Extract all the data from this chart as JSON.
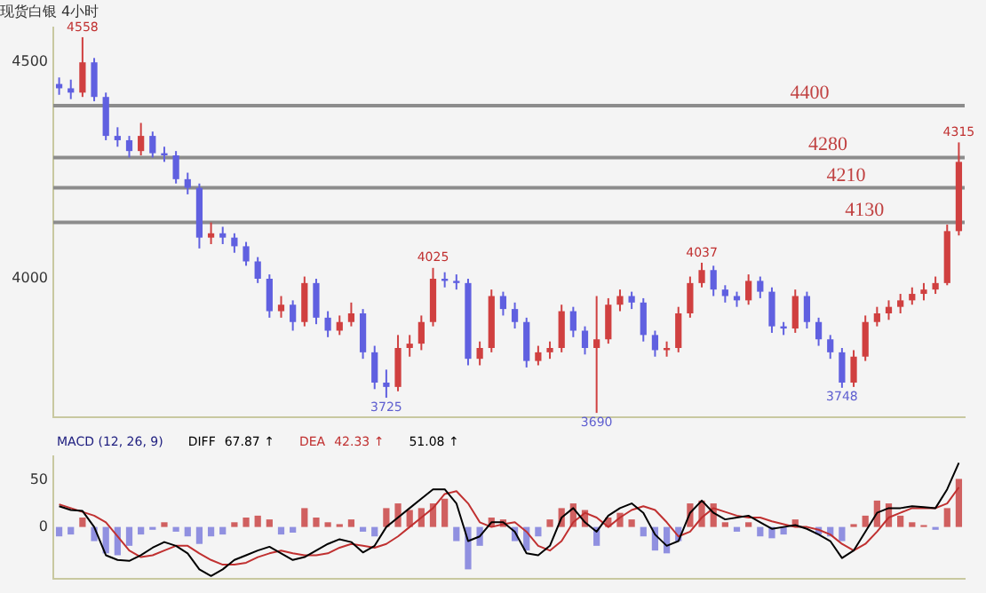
{
  "chart_data": [
    {
      "type": "candlestick",
      "title": "现货白银 4小时",
      "categories": [
        null,
        null,
        null,
        null,
        null,
        null,
        null,
        null,
        null,
        null,
        null,
        null,
        null,
        null,
        null,
        null,
        null,
        null,
        null,
        null,
        null,
        null,
        null,
        null,
        null,
        null,
        null,
        null,
        null,
        null,
        null,
        null,
        null,
        null,
        null,
        null,
        null,
        null,
        null,
        null,
        null,
        null,
        null,
        null,
        null,
        null,
        null,
        null,
        null,
        null,
        null,
        null,
        null,
        null,
        null,
        null,
        null,
        null,
        null,
        null,
        null,
        null,
        null,
        null,
        null,
        null,
        null,
        null,
        null,
        null,
        null,
        null,
        null,
        null,
        null,
        null,
        null,
        null
      ],
      "ohlc": [
        [
          4450,
          4465,
          4425,
          4440
        ],
        [
          4440,
          4460,
          4415,
          4430
        ],
        [
          4430,
          4558,
          4420,
          4500
        ],
        [
          4500,
          4510,
          4410,
          4420
        ],
        [
          4420,
          4430,
          4320,
          4330
        ],
        [
          4330,
          4350,
          4305,
          4320
        ],
        [
          4320,
          4330,
          4280,
          4295
        ],
        [
          4295,
          4360,
          4285,
          4330
        ],
        [
          4330,
          4340,
          4280,
          4290
        ],
        [
          4290,
          4305,
          4270,
          4285
        ],
        [
          4285,
          4295,
          4220,
          4230
        ],
        [
          4230,
          4245,
          4195,
          4210
        ],
        [
          4210,
          4220,
          4070,
          4095
        ],
        [
          4095,
          4130,
          4080,
          4105
        ],
        [
          4105,
          4120,
          4080,
          4095
        ],
        [
          4095,
          4105,
          4060,
          4075
        ],
        [
          4075,
          4085,
          4030,
          4040
        ],
        [
          4040,
          4050,
          3990,
          4000
        ],
        [
          4000,
          4010,
          3910,
          3925
        ],
        [
          3925,
          3960,
          3910,
          3940
        ],
        [
          3940,
          3950,
          3880,
          3900
        ],
        [
          3900,
          4005,
          3890,
          3990
        ],
        [
          3990,
          4000,
          3895,
          3910
        ],
        [
          3910,
          3925,
          3865,
          3880
        ],
        [
          3880,
          3915,
          3870,
          3900
        ],
        [
          3900,
          3945,
          3890,
          3920
        ],
        [
          3920,
          3930,
          3815,
          3830
        ],
        [
          3830,
          3845,
          3745,
          3760
        ],
        [
          3760,
          3790,
          3725,
          3750
        ],
        [
          3750,
          3870,
          3740,
          3840
        ],
        [
          3840,
          3870,
          3820,
          3850
        ],
        [
          3850,
          3915,
          3835,
          3900
        ],
        [
          3900,
          4025,
          3890,
          4000
        ],
        [
          4000,
          4015,
          3980,
          3995
        ],
        [
          3995,
          4010,
          3975,
          3990
        ],
        [
          3990,
          4000,
          3800,
          3815
        ],
        [
          3815,
          3855,
          3800,
          3840
        ],
        [
          3840,
          3975,
          3830,
          3960
        ],
        [
          3960,
          3970,
          3915,
          3930
        ],
        [
          3930,
          3945,
          3885,
          3900
        ],
        [
          3900,
          3910,
          3795,
          3810
        ],
        [
          3810,
          3845,
          3800,
          3830
        ],
        [
          3830,
          3855,
          3815,
          3840
        ],
        [
          3840,
          3940,
          3830,
          3925
        ],
        [
          3925,
          3935,
          3865,
          3880
        ],
        [
          3880,
          3890,
          3825,
          3840
        ],
        [
          3840,
          3960,
          3690,
          3860
        ],
        [
          3860,
          3955,
          3850,
          3940
        ],
        [
          3940,
          3975,
          3925,
          3960
        ],
        [
          3960,
          3970,
          3930,
          3945
        ],
        [
          3945,
          3955,
          3855,
          3870
        ],
        [
          3870,
          3880,
          3820,
          3835
        ],
        [
          3835,
          3855,
          3820,
          3840
        ],
        [
          3840,
          3935,
          3830,
          3920
        ],
        [
          3920,
          4005,
          3910,
          3990
        ],
        [
          3990,
          4037,
          3980,
          4020
        ],
        [
          4020,
          4030,
          3960,
          3975
        ],
        [
          3975,
          3985,
          3945,
          3960
        ],
        [
          3960,
          3970,
          3935,
          3950
        ],
        [
          3950,
          4010,
          3940,
          3995
        ],
        [
          3995,
          4005,
          3955,
          3970
        ],
        [
          3970,
          3980,
          3875,
          3890
        ],
        [
          3890,
          3900,
          3870,
          3885
        ],
        [
          3885,
          3975,
          3875,
          3960
        ],
        [
          3960,
          3970,
          3885,
          3900
        ],
        [
          3900,
          3910,
          3845,
          3860
        ],
        [
          3860,
          3870,
          3815,
          3830
        ],
        [
          3830,
          3840,
          3748,
          3760
        ],
        [
          3760,
          3835,
          3750,
          3820
        ],
        [
          3820,
          3915,
          3810,
          3900
        ],
        [
          3900,
          3935,
          3890,
          3920
        ],
        [
          3920,
          3950,
          3905,
          3935
        ],
        [
          3935,
          3965,
          3920,
          3950
        ],
        [
          3950,
          3980,
          3940,
          3965
        ],
        [
          3965,
          3990,
          3950,
          3975
        ],
        [
          3975,
          4005,
          3965,
          3990
        ],
        [
          3990,
          4125,
          3985,
          4110
        ],
        [
          4110,
          4315,
          4100,
          4270
        ]
      ],
      "colors": [
        "#6060e0",
        "#6060e0",
        "#d04040",
        "#6060e0",
        "#6060e0",
        "#6060e0",
        "#6060e0",
        "#d04040",
        "#6060e0",
        "#6060e0",
        "#6060e0",
        "#6060e0",
        "#6060e0",
        "#d04040",
        "#6060e0",
        "#6060e0",
        "#6060e0",
        "#6060e0",
        "#6060e0",
        "#d04040",
        "#6060e0",
        "#d04040",
        "#6060e0",
        "#6060e0",
        "#d04040",
        "#d04040",
        "#6060e0",
        "#6060e0",
        "#6060e0",
        "#d04040",
        "#d04040",
        "#d04040",
        "#d04040",
        "#6060e0",
        "#6060e0",
        "#6060e0",
        "#d04040",
        "#d04040",
        "#6060e0",
        "#6060e0",
        "#6060e0",
        "#d04040",
        "#d04040",
        "#d04040",
        "#6060e0",
        "#6060e0",
        "#d04040",
        "#d04040",
        "#d04040",
        "#6060e0",
        "#6060e0",
        "#6060e0",
        "#d04040",
        "#d04040",
        "#d04040",
        "#d04040",
        "#6060e0",
        "#6060e0",
        "#6060e0",
        "#d04040",
        "#6060e0",
        "#6060e0",
        "#6060e0",
        "#d04040",
        "#6060e0",
        "#6060e0",
        "#6060e0",
        "#6060e0",
        "#d04040",
        "#d04040",
        "#d04040",
        "#d04040",
        "#d04040",
        "#d04040",
        "#d04040",
        "#d04040",
        "#d04040",
        "#d04040"
      ],
      "ylim": [
        3680,
        4580
      ],
      "yticks": [
        4000,
        4500
      ],
      "tick_labels": "y",
      "ref_lines": [
        {
          "axis": "y",
          "value": 4400,
          "label": "4400",
          "color": "#8c8c8c"
        },
        {
          "axis": "y",
          "value": 4280,
          "label": "4280",
          "color": "#8c8c8c"
        },
        {
          "axis": "y",
          "value": 4210,
          "label": "4210",
          "color": "#8c8c8c"
        },
        {
          "axis": "y",
          "value": 4130,
          "label": "4130",
          "color": "#8c8c8c"
        }
      ],
      "annotations": [
        {
          "text": "4558",
          "y": 4558
        },
        {
          "text": "4025",
          "y": 4025
        },
        {
          "text": "3725",
          "y": 3725
        },
        {
          "text": "3690",
          "y": 3690
        },
        {
          "text": "4037",
          "y": 4037
        },
        {
          "text": "3748",
          "y": 3748
        },
        {
          "text": "4315",
          "y": 4315
        }
      ]
    },
    {
      "type": "bar",
      "categories": [
        null,
        null,
        null,
        null,
        null,
        null,
        null,
        null,
        null,
        null,
        null,
        null,
        null,
        null,
        null,
        null,
        null,
        null,
        null,
        null,
        null,
        null,
        null,
        null,
        null,
        null,
        null,
        null,
        null,
        null,
        null,
        null,
        null,
        null,
        null,
        null,
        null,
        null,
        null,
        null,
        null,
        null,
        null,
        null,
        null,
        null,
        null,
        null,
        null,
        null,
        null,
        null,
        null,
        null,
        null,
        null,
        null,
        null,
        null,
        null,
        null,
        null,
        null,
        null,
        null,
        null,
        null,
        null,
        null,
        null,
        null,
        null,
        null,
        null,
        null,
        null,
        null,
        null
      ],
      "series": [
        {
          "type": "bar",
          "values": [
            -10,
            -8,
            10,
            -15,
            -28,
            -30,
            -20,
            -8,
            -3,
            5,
            -5,
            -10,
            -18,
            -10,
            -8,
            5,
            10,
            12,
            8,
            -8,
            -6,
            20,
            10,
            5,
            3,
            8,
            -5,
            -10,
            20,
            25,
            18,
            20,
            25,
            30,
            -15,
            -45,
            -20,
            10,
            8,
            -15,
            -25,
            -10,
            8,
            20,
            25,
            18,
            -20,
            10,
            15,
            8,
            -10,
            -25,
            -28,
            -15,
            25,
            28,
            25,
            5,
            -5,
            5,
            -10,
            -12,
            -8,
            8,
            null,
            -8,
            -10,
            -15,
            3,
            12,
            28,
            25,
            12,
            5,
            2,
            -3,
            20,
            51
          ],
          "colors": [
            "#9090e0",
            "#9090e0",
            "#d06060",
            "#9090e0",
            "#9090e0",
            "#9090e0",
            "#9090e0",
            "#9090e0",
            "#9090e0",
            "#d06060",
            "#9090e0",
            "#9090e0",
            "#9090e0",
            "#9090e0",
            "#9090e0",
            "#d06060",
            "#d06060",
            "#d06060",
            "#d06060",
            "#9090e0",
            "#9090e0",
            "#d06060",
            "#d06060",
            "#d06060",
            "#d06060",
            "#d06060",
            "#9090e0",
            "#9090e0",
            "#d06060",
            "#d06060",
            "#d06060",
            "#d06060",
            "#d06060",
            "#d06060",
            "#9090e0",
            "#9090e0",
            "#9090e0",
            "#d06060",
            "#d06060",
            "#9090e0",
            "#9090e0",
            "#9090e0",
            "#d06060",
            "#d06060",
            "#d06060",
            "#d06060",
            "#9090e0",
            "#d06060",
            "#d06060",
            "#d06060",
            "#9090e0",
            "#9090e0",
            "#9090e0",
            "#9090e0",
            "#d06060",
            "#d06060",
            "#d06060",
            "#d06060",
            "#9090e0",
            "#d06060",
            "#9090e0",
            "#9090e0",
            "#9090e0",
            "#d06060",
            "#9090e0",
            "#9090e0",
            "#9090e0",
            "#9090e0",
            "#d06060",
            "#d06060",
            "#d06060",
            "#d06060",
            "#d06060",
            "#d06060",
            "#d06060",
            "#9090e0",
            "#d06060",
            "#d06060"
          ]
        },
        {
          "type": "line",
          "name": "DIFF",
          "color": "#000000",
          "values": [
            22,
            18,
            17,
            0,
            -30,
            -35,
            -36,
            -30,
            -22,
            -16,
            -20,
            -28,
            -45,
            -52,
            -45,
            -35,
            -30,
            -25,
            -21,
            -28,
            -35,
            -32,
            -25,
            -18,
            -13,
            -16,
            -27,
            -20,
            0,
            10,
            20,
            30,
            40,
            40,
            25,
            -15,
            -10,
            5,
            5,
            -5,
            -28,
            -30,
            -20,
            10,
            20,
            5,
            -5,
            12,
            20,
            25,
            15,
            -8,
            -20,
            -15,
            15,
            28,
            15,
            8,
            10,
            12,
            5,
            -2,
            0,
            2,
            -2,
            -8,
            -15,
            -33,
            -25,
            -5,
            15,
            20,
            20,
            22,
            21,
            20,
            40,
            68
          ]
        },
        {
          "type": "line",
          "name": "DEA",
          "color": "#c03030",
          "values": [
            24,
            20,
            16,
            12,
            5,
            -10,
            -25,
            -32,
            -30,
            -25,
            -20,
            -20,
            -28,
            -35,
            -40,
            -40,
            -38,
            -32,
            -28,
            -25,
            -28,
            -30,
            -30,
            -28,
            -22,
            -18,
            -20,
            -22,
            -18,
            -10,
            0,
            10,
            20,
            35,
            38,
            25,
            5,
            0,
            3,
            5,
            -5,
            -20,
            -25,
            -15,
            5,
            15,
            10,
            0,
            10,
            18,
            22,
            18,
            5,
            -10,
            -5,
            10,
            20,
            16,
            12,
            10,
            10,
            6,
            3,
            0,
            0,
            -3,
            -8,
            -18,
            -25,
            -18,
            -5,
            10,
            15,
            20,
            20,
            20,
            25,
            42
          ]
        }
      ],
      "ylim": [
        -55,
        75
      ],
      "yticks": [
        0,
        50
      ],
      "tick_labels": "y",
      "annotations": [
        "MACD (12, 26, 9)",
        "67.87 ↑",
        "42.33 ↑",
        "51.08 ↑"
      ]
    }
  ]
}
